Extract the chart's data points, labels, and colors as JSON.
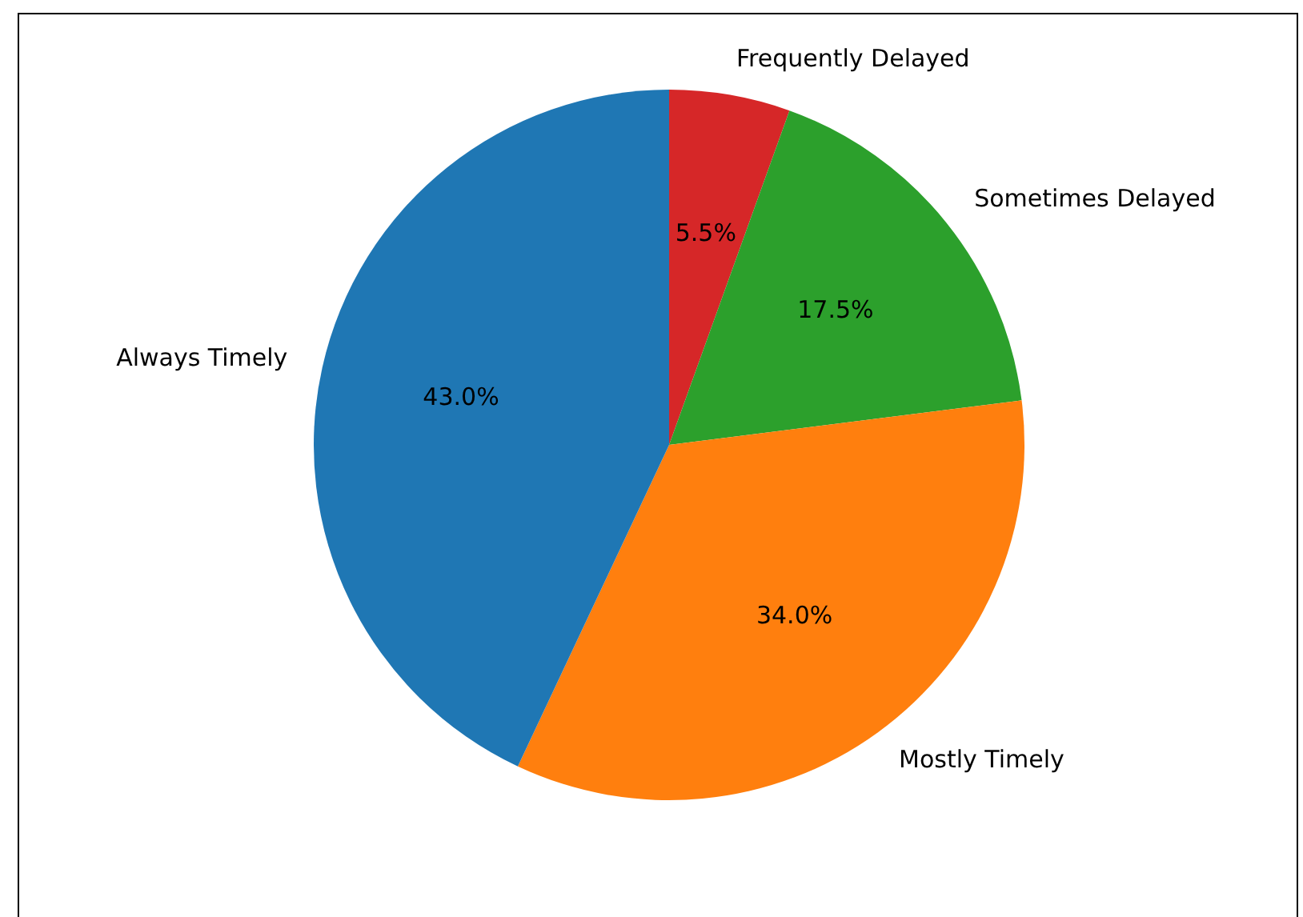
{
  "chart_data": {
    "type": "pie",
    "categories": [
      "Always Timely",
      "Mostly Timely",
      "Sometimes Delayed",
      "Frequently Delayed"
    ],
    "values": [
      43.0,
      34.0,
      17.5,
      5.5
    ],
    "value_labels": [
      "43.0%",
      "34.0%",
      "17.5%",
      "5.5%"
    ],
    "colors": [
      "#1f77b4",
      "#ff7f0e",
      "#2ca02c",
      "#d62728"
    ],
    "legend": false
  }
}
